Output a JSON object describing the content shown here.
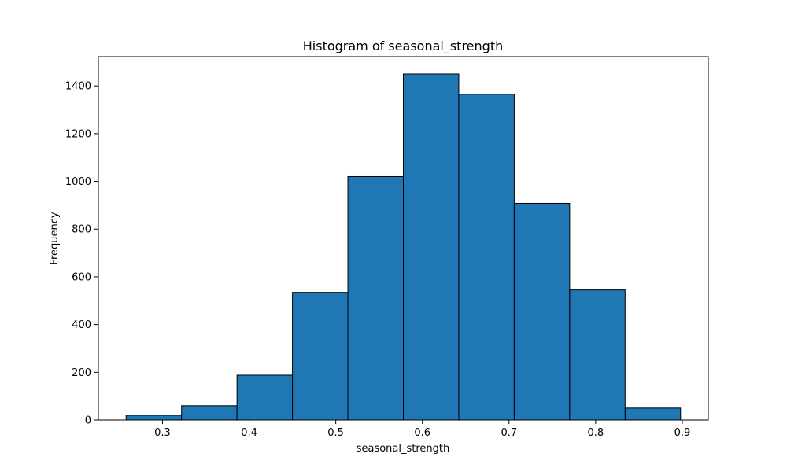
{
  "chart_data": {
    "type": "bar",
    "title": "Histogram of seasonal_strength",
    "xlabel": "seasonal_strength",
    "ylabel": "Frequency",
    "bins": [
      {
        "x0": 0.258,
        "x1": 0.322,
        "count": 20
      },
      {
        "x0": 0.322,
        "x1": 0.386,
        "count": 60
      },
      {
        "x0": 0.386,
        "x1": 0.45,
        "count": 188
      },
      {
        "x0": 0.45,
        "x1": 0.514,
        "count": 535
      },
      {
        "x0": 0.514,
        "x1": 0.578,
        "count": 1020
      },
      {
        "x0": 0.578,
        "x1": 0.642,
        "count": 1450
      },
      {
        "x0": 0.642,
        "x1": 0.706,
        "count": 1365
      },
      {
        "x0": 0.706,
        "x1": 0.77,
        "count": 908
      },
      {
        "x0": 0.77,
        "x1": 0.834,
        "count": 545
      },
      {
        "x0": 0.834,
        "x1": 0.898,
        "count": 50
      }
    ],
    "xticks": [
      0.3,
      0.4,
      0.5,
      0.6,
      0.7,
      0.8,
      0.9
    ],
    "xtick_labels": [
      "0.3",
      "0.4",
      "0.5",
      "0.6",
      "0.7",
      "0.8",
      "0.9"
    ],
    "yticks": [
      0,
      200,
      400,
      600,
      800,
      1000,
      1200,
      1400
    ],
    "ytick_labels": [
      "0",
      "200",
      "400",
      "600",
      "800",
      "1000",
      "1200",
      "1400"
    ],
    "xlim": [
      0.226,
      0.93
    ],
    "ylim": [
      0,
      1522.5
    ],
    "bar_color": "#1f77b4",
    "edge_color": "#000000",
    "grid": false,
    "legend": "none"
  }
}
